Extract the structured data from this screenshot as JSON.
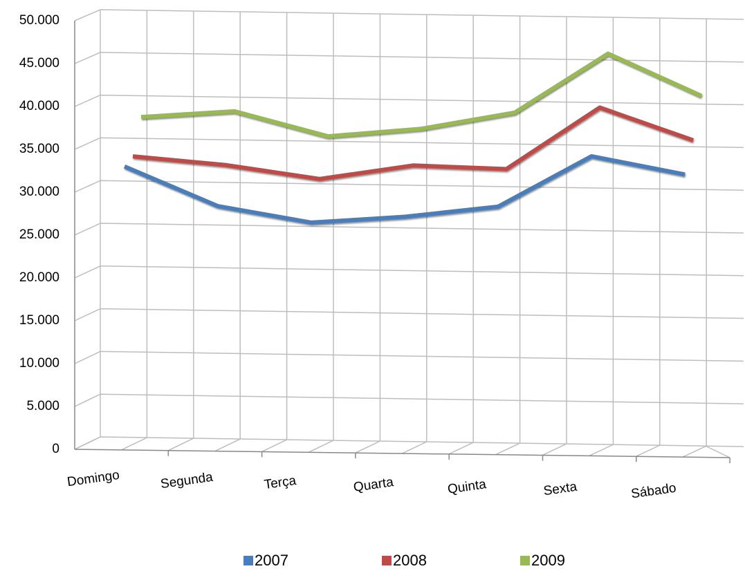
{
  "chart_data": {
    "type": "line",
    "categories": [
      "Domingo",
      "Segunda",
      "Terça",
      "Quarta",
      "Quinta",
      "Sexta",
      "Sábado"
    ],
    "series": [
      {
        "name": "2007",
        "color": "#4a7ebb",
        "values": [
          33000,
          28500,
          26700,
          27500,
          28800,
          34800,
          32800
        ]
      },
      {
        "name": "2008",
        "color": "#be4b48",
        "values": [
          33700,
          32800,
          31300,
          33000,
          32700,
          40000,
          36300
        ]
      },
      {
        "name": "2009",
        "color": "#98b954",
        "values": [
          37800,
          38600,
          35800,
          36800,
          38800,
          45800,
          41000
        ]
      }
    ],
    "ylim": [
      0,
      50000
    ],
    "yticks": [
      0,
      {
        "value": 5000,
        "label": "5.000"
      },
      {
        "value": 10000,
        "label": "10.000"
      },
      {
        "value": 15000,
        "label": "15.000"
      },
      {
        "value": 20000,
        "label": "20.000"
      },
      {
        "value": 25000,
        "label": "25.000"
      },
      {
        "value": 30000,
        "label": "30.000"
      },
      {
        "value": 35000,
        "label": "35.000"
      },
      {
        "value": 40000,
        "label": "40.000"
      },
      {
        "value": 45000,
        "label": "45.000"
      },
      {
        "value": 50000,
        "label": "50.000"
      }
    ],
    "grid": true,
    "legend": "bottom"
  }
}
